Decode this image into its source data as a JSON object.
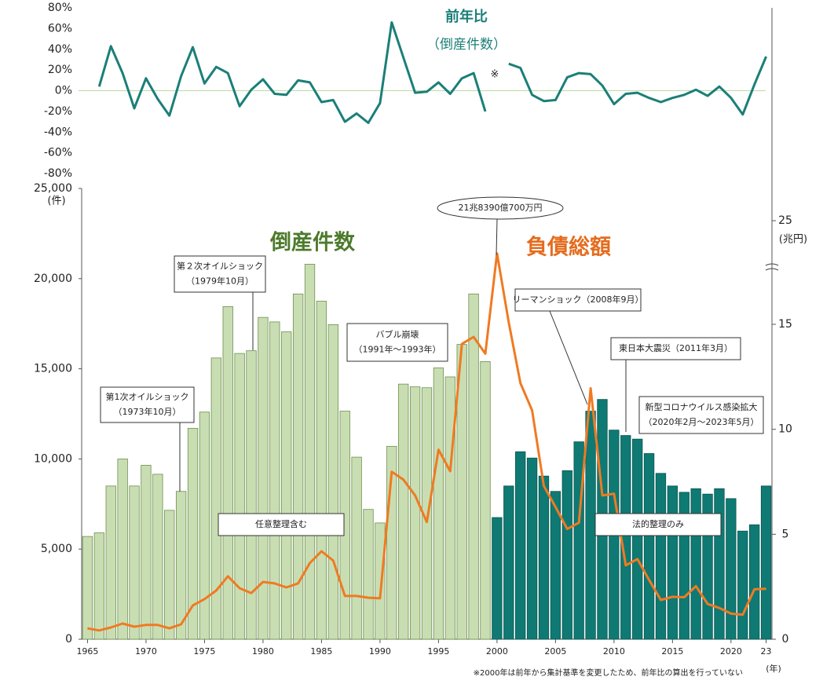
{
  "chart_data": [
    {
      "type": "line",
      "title": "前年比",
      "subtitle": "（倒産件数）",
      "note_mark": "※",
      "color": "#1b7f78",
      "x": [
        1965,
        1966,
        1967,
        1968,
        1969,
        1970,
        1971,
        1972,
        1973,
        1974,
        1975,
        1976,
        1977,
        1978,
        1979,
        1980,
        1981,
        1982,
        1983,
        1984,
        1985,
        1986,
        1987,
        1988,
        1989,
        1990,
        1991,
        1992,
        1993,
        1994,
        1995,
        1996,
        1997,
        1998,
        1999,
        2000,
        2001,
        2002,
        2003,
        2004,
        2005,
        2006,
        2007,
        2008,
        2009,
        2010,
        2011,
        2012,
        2013,
        2014,
        2015,
        2016,
        2017,
        2018,
        2019,
        2020,
        2021,
        2022,
        2023
      ],
      "values": [
        null,
        4,
        43,
        17,
        -17,
        12,
        -8,
        -24,
        14,
        42,
        7,
        23,
        17,
        -15,
        1,
        11,
        -3,
        -4,
        10,
        8,
        -11,
        -9,
        -30,
        -22,
        -31,
        -12,
        66,
        32,
        -2,
        -1,
        8,
        -3,
        12,
        17,
        -20,
        null,
        26,
        22,
        -4,
        -10,
        -9,
        13,
        17,
        16,
        5,
        -13,
        -3,
        -2,
        -7,
        -11,
        -7,
        -4,
        1,
        -5,
        4,
        -7,
        -23,
        6,
        33
      ],
      "ylim": [
        -80,
        80
      ],
      "yticks": [
        {
          "value": 80,
          "label": "80%"
        },
        {
          "value": 60,
          "label": "60%"
        },
        {
          "value": 40,
          "label": "40%"
        },
        {
          "value": 20,
          "label": "20%"
        },
        {
          "value": 0,
          "label": "0%"
        },
        {
          "value": -20,
          "label": "-20%"
        },
        {
          "value": -40,
          "label": "-40%"
        },
        {
          "value": -60,
          "label": "-60%"
        },
        {
          "value": -80,
          "label": "-80%"
        }
      ]
    },
    {
      "type": "bar",
      "xlabel": "(年)",
      "ylabel": "(件)",
      "y2label": "(兆円)",
      "x": [
        1965,
        1966,
        1967,
        1968,
        1969,
        1970,
        1971,
        1972,
        1973,
        1974,
        1975,
        1976,
        1977,
        1978,
        1979,
        1980,
        1981,
        1982,
        1983,
        1984,
        1985,
        1986,
        1987,
        1988,
        1989,
        1990,
        1991,
        1992,
        1993,
        1994,
        1995,
        1996,
        1997,
        1998,
        1999,
        2000,
        2001,
        2002,
        2003,
        2004,
        2005,
        2006,
        2007,
        2008,
        2009,
        2010,
        2011,
        2012,
        2013,
        2014,
        2015,
        2016,
        2017,
        2018,
        2019,
        2020,
        2021,
        2022,
        2023
      ],
      "series": [
        {
          "name": "倒産件数",
          "type": "bar",
          "colors": [
            "#c8deb2",
            "#c8deb2",
            "#c8deb2",
            "#c8deb2",
            "#c8deb2",
            "#c8deb2",
            "#c8deb2",
            "#c8deb2",
            "#c8deb2",
            "#c8deb2",
            "#c8deb2",
            "#c8deb2",
            "#c8deb2",
            "#c8deb2",
            "#c8deb2",
            "#c8deb2",
            "#c8deb2",
            "#c8deb2",
            "#c8deb2",
            "#c8deb2",
            "#c8deb2",
            "#c8deb2",
            "#c8deb2",
            "#c8deb2",
            "#c8deb2",
            "#c8deb2",
            "#c8deb2",
            "#c8deb2",
            "#c8deb2",
            "#c8deb2",
            "#c8deb2",
            "#c8deb2",
            "#c8deb2",
            "#c8deb2",
            "#c8deb2",
            "#0e7a73",
            "#0e7a73",
            "#0e7a73",
            "#0e7a73",
            "#0e7a73",
            "#0e7a73",
            "#0e7a73",
            "#0e7a73",
            "#0e7a73",
            "#0e7a73",
            "#0e7a73",
            "#0e7a73",
            "#0e7a73",
            "#0e7a73",
            "#0e7a73",
            "#0e7a73",
            "#0e7a73",
            "#0e7a73",
            "#0e7a73",
            "#0e7a73",
            "#0e7a73",
            "#0e7a73",
            "#0e7a73",
            "#0e7a73"
          ],
          "values": [
            5700,
            5900,
            8500,
            10000,
            8500,
            9650,
            9150,
            7150,
            8200,
            11700,
            12600,
            15600,
            18450,
            15850,
            16000,
            17850,
            17600,
            17050,
            19150,
            20800,
            18750,
            17450,
            12650,
            10100,
            7200,
            6450,
            10700,
            14150,
            14000,
            13950,
            15050,
            14550,
            16350,
            19150,
            15400,
            6750,
            8500,
            10400,
            10050,
            9050,
            8200,
            9350,
            10950,
            12650,
            13300,
            11600,
            11300,
            11100,
            10300,
            9200,
            8500,
            8150,
            8350,
            8050,
            8350,
            7800,
            6000,
            6350,
            8500
          ]
        },
        {
          "name": "負債総額",
          "type": "line",
          "axis": "y2",
          "color": "#f07a22",
          "values": [
            0.52,
            0.42,
            0.56,
            0.75,
            0.6,
            0.68,
            0.68,
            0.52,
            0.71,
            1.61,
            1.91,
            2.32,
            3.0,
            2.43,
            2.2,
            2.73,
            2.66,
            2.47,
            2.66,
            3.63,
            4.19,
            3.75,
            2.06,
            2.06,
            1.98,
            1.95,
            7.98,
            7.6,
            6.85,
            5.58,
            9.03,
            8.0,
            14.07,
            14.4,
            13.6,
            21.84,
            15.2,
            12.2,
            10.9,
            7.3,
            6.3,
            5.25,
            5.55,
            11.95,
            6.85,
            6.93,
            3.52,
            3.82,
            2.82,
            1.87,
            2.02,
            2.0,
            2.53,
            1.68,
            1.49,
            1.22,
            1.17,
            2.38,
            2.4
          ]
        }
      ],
      "xlim": [
        1964.5,
        2023.5
      ],
      "xticks": [
        1965,
        1970,
        1975,
        1980,
        1985,
        1990,
        1995,
        2000,
        2005,
        2010,
        2015,
        2020,
        {
          "value": 2023,
          "label": "23"
        }
      ],
      "ylim": [
        0,
        25000
      ],
      "yticks": [
        0,
        {
          "value": 5000,
          "label": "5,000"
        },
        {
          "value": 10000,
          "label": "10,000"
        },
        {
          "value": 15000,
          "label": "15,000"
        },
        {
          "value": 20000,
          "label": "20,000"
        },
        {
          "value": 25000,
          "label": "25,000"
        }
      ],
      "y2lim": [
        0,
        25
      ],
      "y2ticks": [
        0,
        5,
        10,
        15,
        25
      ],
      "annotations": [
        [
          "第1次オイルショック",
          "（1973年10月）"
        ],
        [
          "第２次オイルショック",
          "（1979年10月）"
        ],
        [
          "バブル崩壊",
          "（1991年～1993年）"
        ],
        [
          "リーマンショック（2008年9月）"
        ],
        [
          "東日本大震災（2011年3月）"
        ],
        [
          "新型コロナウイルス感染拡大",
          "（2020年2月～2023年5月）"
        ],
        [
          "任意整理含む"
        ],
        [
          "法的整理のみ"
        ],
        [
          "21兆8390億700万円"
        ]
      ],
      "footnote": "※2000年は前年から集計基準を変更したため、前年比の算出を行っていない"
    }
  ]
}
